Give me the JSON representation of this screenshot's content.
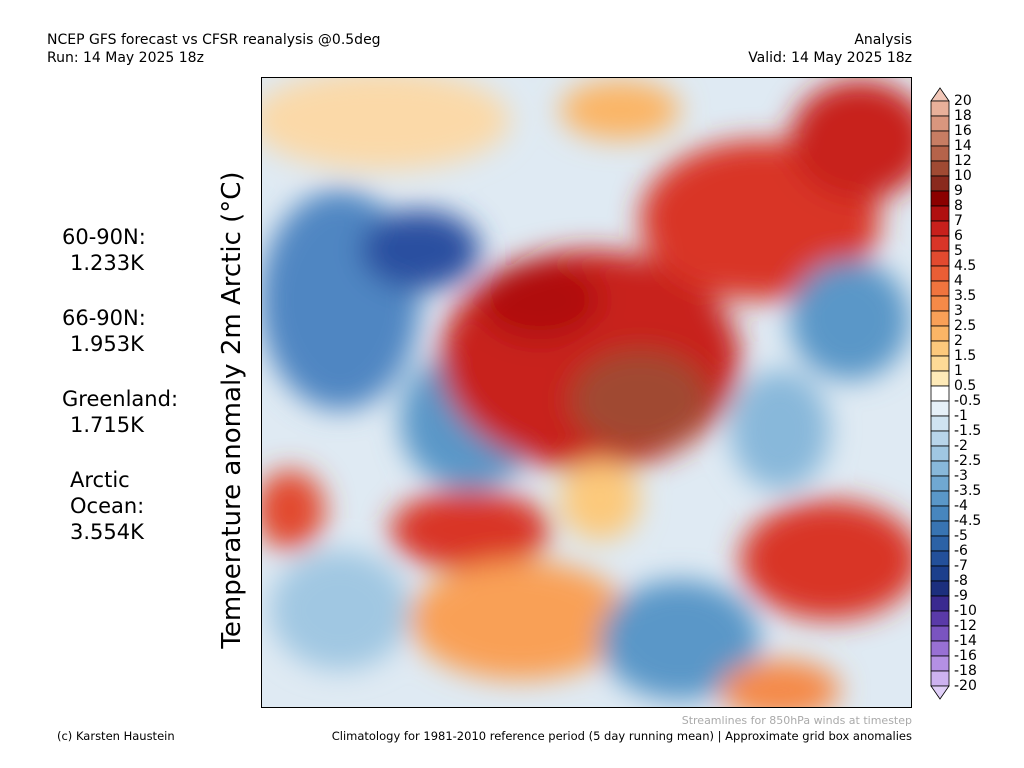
{
  "header": {
    "title_left": [
      "NCEP GFS forecast vs CFSR reanalysis @0.5deg",
      "Run: 14 May 2025 18z"
    ],
    "title_right": [
      "Analysis",
      "Valid: 14 May 2025 18z"
    ]
  },
  "stats": [
    {
      "label": "60-90N:",
      "value": "1.233K"
    },
    {
      "label": "66-90N:",
      "value": "1.953K"
    },
    {
      "label": "Greenland:",
      "value": "1.715K"
    },
    {
      "label": [
        "Arctic",
        "Ocean:"
      ],
      "value": "3.554K"
    }
  ],
  "y_label": "Temperature anomaly 2m Arctic (°C)",
  "colorbar": {
    "labels": [
      20,
      18,
      16,
      14,
      12,
      10,
      9,
      8,
      7,
      6,
      5,
      4.5,
      4,
      3.5,
      3,
      2.5,
      2,
      1.5,
      1,
      0.5,
      -0.5,
      -1,
      -1.5,
      -2,
      -2.5,
      -3,
      -3.5,
      -4,
      -4.5,
      -5,
      -6,
      -7,
      -8,
      -9,
      -10,
      -12,
      -14,
      -16,
      -18,
      -20
    ],
    "colors": [
      "#f2c7b8",
      "#e8b09a",
      "#d9967e",
      "#c77d63",
      "#b5634a",
      "#a04a33",
      "#8a2a1e",
      "#8b0000",
      "#b01010",
      "#c8201c",
      "#d93528",
      "#e24a2f",
      "#ea5e35",
      "#f0743e",
      "#f58a48",
      "#f9a057",
      "#fbb566",
      "#fcc97c",
      "#fdda96",
      "#feeab8",
      "#ffffff",
      "#e6f0f8",
      "#cfe3f1",
      "#b8d5ea",
      "#a0c7e2",
      "#88b8da",
      "#70a8d2",
      "#5a97c8",
      "#4786be",
      "#3874b2",
      "#2c62a6",
      "#23509a",
      "#1c3f8c",
      "#1c2f7e",
      "#3a2a90",
      "#5a3aa8",
      "#7a54c0",
      "#9870d4",
      "#b490e4",
      "#cdb2f0",
      "#e0cff8"
    ]
  },
  "footer": {
    "credit": "(c) Karsten Haustein",
    "streamlines": "Streamlines for 850hPa winds at timestep",
    "climatology": "Climatology for 1981-2010 reference period (5 day running mean) | Approximate grid box anomalies"
  }
}
